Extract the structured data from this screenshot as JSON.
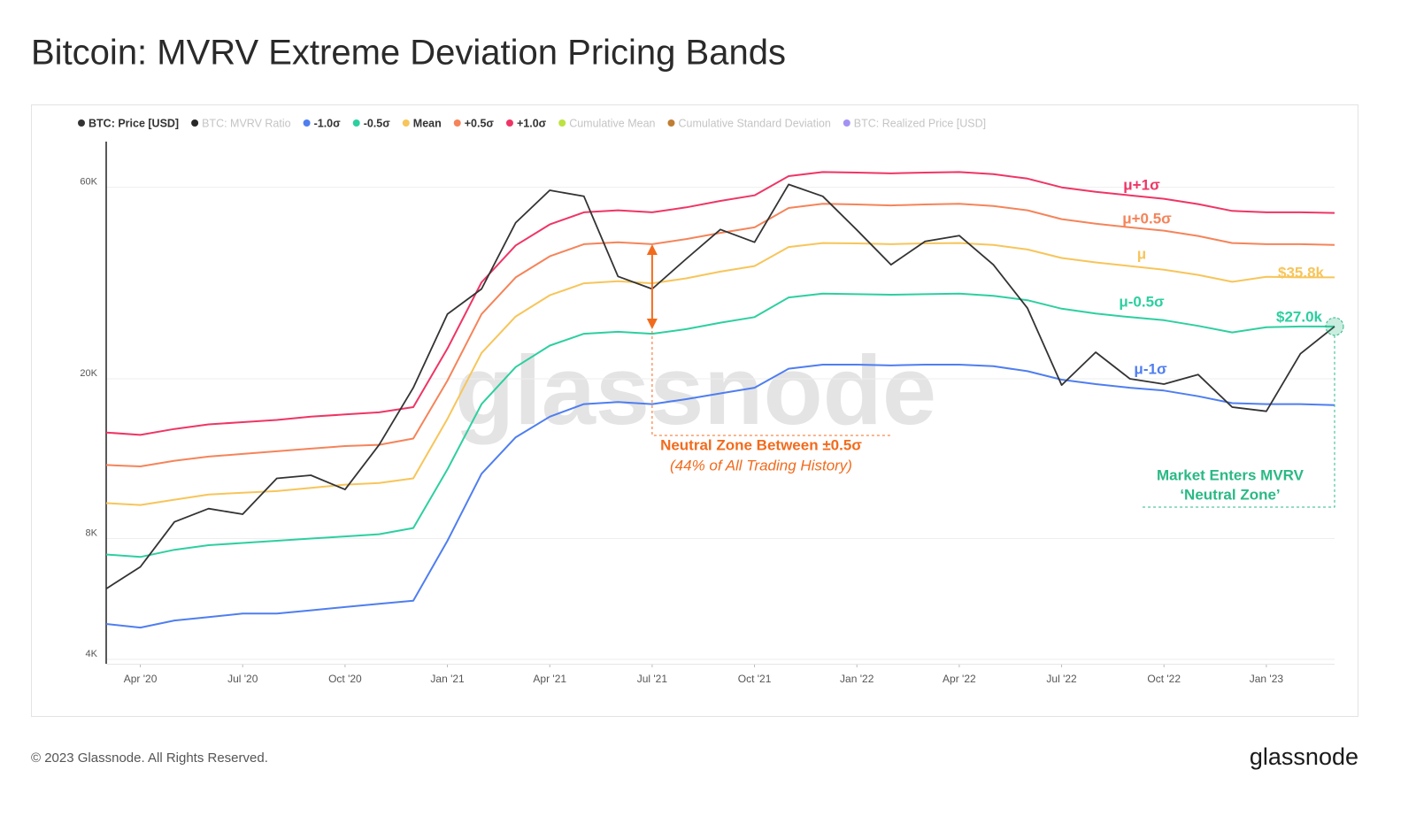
{
  "title": "Bitcoin: MVRV Extreme Deviation Pricing Bands",
  "footer": "© 2023 Glassnode. All Rights Reserved.",
  "logo": "glassnode",
  "chart_data": {
    "type": "line",
    "watermark": "glassnode",
    "log_scale": true,
    "grid": true,
    "x": [
      "2020-03",
      "2020-04",
      "2020-05",
      "2020-06",
      "2020-07",
      "2020-08",
      "2020-09",
      "2020-10",
      "2020-11",
      "2020-12",
      "2021-01",
      "2021-02",
      "2021-03",
      "2021-04",
      "2021-05",
      "2021-06",
      "2021-07",
      "2021-08",
      "2021-09",
      "2021-10",
      "2021-11",
      "2021-12",
      "2022-01",
      "2022-02",
      "2022-03",
      "2022-04",
      "2022-05",
      "2022-06",
      "2022-07",
      "2022-08",
      "2022-09",
      "2022-10",
      "2022-11",
      "2022-12",
      "2023-01",
      "2023-02",
      "2023-03"
    ],
    "xlim": [
      "2020-03",
      "2023-03"
    ],
    "xticks": [
      {
        "value": "2020-04",
        "label": "Apr '20"
      },
      {
        "value": "2020-07",
        "label": "Jul '20"
      },
      {
        "value": "2020-10",
        "label": "Oct '20"
      },
      {
        "value": "2021-01",
        "label": "Jan '21"
      },
      {
        "value": "2021-04",
        "label": "Apr '21"
      },
      {
        "value": "2021-07",
        "label": "Jul '21"
      },
      {
        "value": "2021-10",
        "label": "Oct '21"
      },
      {
        "value": "2022-01",
        "label": "Jan '22"
      },
      {
        "value": "2022-04",
        "label": "Apr '22"
      },
      {
        "value": "2022-07",
        "label": "Jul '22"
      },
      {
        "value": "2022-10",
        "label": "Oct '22"
      },
      {
        "value": "2023-01",
        "label": "Jan '23"
      }
    ],
    "ylim": [
      3900,
      78000
    ],
    "yticks": [
      {
        "value": 4000,
        "label": "4K"
      },
      {
        "value": 8000,
        "label": "8K"
      },
      {
        "value": 20000,
        "label": "20K"
      },
      {
        "value": 60000,
        "label": "60K"
      }
    ],
    "series": [
      {
        "name": "BTC: Price [USD]",
        "color": "#333333",
        "visible": true,
        "values": [
          6000,
          6800,
          8800,
          9500,
          9200,
          11300,
          11500,
          10600,
          13700,
          19000,
          29000,
          33500,
          49000,
          59000,
          57000,
          36000,
          33500,
          39800,
          47100,
          43800,
          61000,
          57000,
          47000,
          38500,
          44000,
          45500,
          38500,
          30000,
          19300,
          23300,
          20000,
          19400,
          20500,
          17000,
          16600,
          23100,
          27000
        ]
      },
      {
        "name": "BTC: MVRV Ratio",
        "color": "#111111",
        "visible": false
      },
      {
        "name": "-1.0σ",
        "color": "#4f7ef0",
        "visible": true,
        "values": [
          4900,
          4800,
          5000,
          5100,
          5200,
          5200,
          5300,
          5400,
          5500,
          5600,
          7900,
          11600,
          14300,
          16100,
          17300,
          17500,
          17300,
          17800,
          18400,
          19000,
          21200,
          21700,
          21700,
          21600,
          21700,
          21700,
          21500,
          20900,
          19900,
          19400,
          19000,
          18700,
          18100,
          17400,
          17300,
          17300,
          17200
        ]
      },
      {
        "name": "-0.5σ",
        "color": "#2dcfa0",
        "visible": true,
        "values": [
          7300,
          7200,
          7500,
          7700,
          7800,
          7900,
          8000,
          8100,
          8200,
          8500,
          11900,
          17300,
          21400,
          24200,
          25900,
          26200,
          25900,
          26600,
          27600,
          28500,
          31900,
          32600,
          32500,
          32400,
          32500,
          32600,
          32200,
          31400,
          29900,
          29100,
          28500,
          28000,
          27100,
          26100,
          26900,
          27000,
          27000
        ]
      },
      {
        "name": "Mean",
        "color": "#f7c55a",
        "visible": true,
        "values": [
          9800,
          9700,
          10000,
          10300,
          10400,
          10500,
          10700,
          10900,
          11000,
          11300,
          15900,
          23200,
          28600,
          32300,
          34600,
          35000,
          34600,
          35600,
          37000,
          38200,
          42600,
          43600,
          43500,
          43300,
          43500,
          43600,
          43100,
          42000,
          40000,
          39000,
          38200,
          37400,
          36300,
          34900,
          35900,
          35800,
          35800
        ]
      },
      {
        "name": "+0.5σ",
        "color": "#f5845a",
        "visible": true,
        "values": [
          12200,
          12100,
          12500,
          12800,
          13000,
          13200,
          13400,
          13600,
          13700,
          14200,
          19800,
          29000,
          35800,
          40400,
          43300,
          43800,
          43300,
          44600,
          46200,
          47700,
          53300,
          54600,
          54400,
          54100,
          54400,
          54600,
          53900,
          52600,
          50000,
          48700,
          47700,
          46800,
          45400,
          43600,
          43300,
          43300,
          43100
        ]
      },
      {
        "name": "+1.0σ",
        "color": "#ef3565",
        "visible": true,
        "values": [
          14700,
          14500,
          15000,
          15400,
          15600,
          15800,
          16100,
          16300,
          16500,
          17000,
          23800,
          34800,
          43000,
          48500,
          52000,
          52600,
          52000,
          53500,
          55500,
          57300,
          64000,
          65500,
          65300,
          65000,
          65300,
          65500,
          64700,
          63100,
          60000,
          58500,
          57300,
          56200,
          54500,
          52400,
          52000,
          52000,
          51800
        ]
      },
      {
        "name": "Cumulative Mean",
        "color": "#b5e02a",
        "visible": false
      },
      {
        "name": "Cumulative Standard Deviation",
        "color": "#b8701e",
        "visible": false
      },
      {
        "name": "BTC: Realized Price [USD]",
        "color": "#9a86f2",
        "visible": false
      }
    ],
    "annotations": [
      "μ+1σ",
      "μ+0.5σ",
      "μ",
      "$35.8k",
      "μ-0.5σ",
      "$27.0k",
      "μ-1σ",
      "Neutral Zone Between ±0.5σ",
      "(44% of All Trading History)",
      "Market Enters MVRV",
      "‘Neutral Zone’"
    ]
  }
}
